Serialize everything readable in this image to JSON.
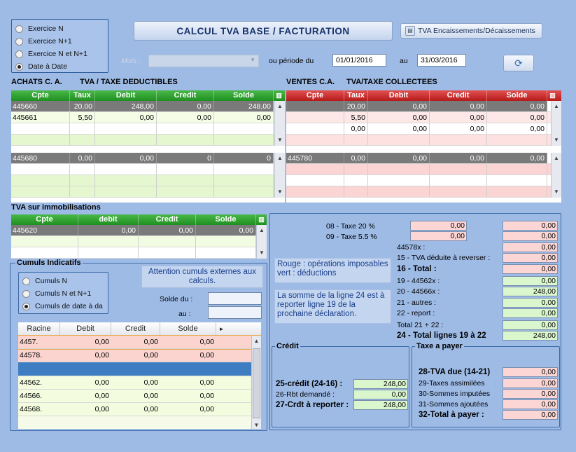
{
  "period_options": [
    "Exercice N",
    "Exercice N+1",
    "Exercice N et N+1",
    "Date à Date"
  ],
  "title": "CALCUL TVA BASE / FACTURATION",
  "tva_btn": "TVA Encaissements/Décaissements",
  "mois_label": "Mois :",
  "periode_label": "ou période du",
  "date_from": "01/01/2016",
  "au_label": "au",
  "date_to": "31/03/2016",
  "achats_title": "ACHATS C. A.",
  "achats_sub": "TVA / TAXE DEDUCTIBLES",
  "ventes_title": "VENTES C.A.",
  "ventes_sub": "TVA/TAXE COLLECTEES",
  "achats_cols": [
    "Cpte",
    "Taux",
    "Debit",
    "Credit",
    "Solde"
  ],
  "achats_rows": [
    [
      "445660",
      "20,00",
      "248,00",
      "0,00",
      "248,00"
    ],
    [
      "445661",
      "5,50",
      "0,00",
      "0,00",
      "0,00"
    ],
    [
      "",
      "",
      "",
      "",
      ""
    ],
    [
      "",
      "",
      "",
      "",
      ""
    ]
  ],
  "achats_rows2": [
    [
      "445680",
      "0,00",
      "0,00",
      "0",
      "0"
    ],
    [
      "",
      "",
      "",
      "",
      ""
    ],
    [
      "",
      "",
      "",
      "",
      ""
    ],
    [
      "",
      "",
      "",
      "",
      ""
    ]
  ],
  "ventes_cols": [
    "Cpte",
    "Taux",
    "Debit",
    "Credit",
    "Solde"
  ],
  "ventes_rows": [
    [
      "",
      "20,00",
      "0,00",
      "0,00",
      "0,00"
    ],
    [
      "",
      "5,50",
      "0,00",
      "0,00",
      "0,00"
    ],
    [
      "",
      "0,00",
      "0,00",
      "0,00",
      "0,00"
    ],
    [
      "",
      "",
      "",
      "",
      ""
    ]
  ],
  "ventes_rows2": [
    [
      "445780",
      "0,00",
      "0,00",
      "0,00",
      "0,00"
    ],
    [
      "",
      "",
      "",
      "",
      ""
    ],
    [
      "",
      "",
      "",
      "",
      ""
    ],
    [
      "",
      "",
      "",
      "",
      ""
    ]
  ],
  "immo_title": "TVA sur immobilisations",
  "immo_cols": [
    "Cpte",
    "debit",
    "Credit",
    "Solde"
  ],
  "immo_rows": [
    [
      "445620",
      "0,00",
      "0,00",
      "0,00"
    ],
    [
      "",
      "",
      "",
      ""
    ],
    [
      "",
      "",
      "",
      ""
    ]
  ],
  "cumuls_title": "Cumuls Indicatifs",
  "cumuls_options": [
    "Cumuls N",
    "Cumuls N et N+1",
    "Cumuls de date à da"
  ],
  "attention": "Attention cumuls externes aux calculs.",
  "solde_du": "Solde du :",
  "solde_au": "au :",
  "cumuls_cols": [
    "Racine",
    "Debit",
    "Credit",
    "Solde"
  ],
  "cumuls_rows": [
    [
      "4457.",
      "0,00",
      "0,00",
      "0,00"
    ],
    [
      "44578.",
      "0,00",
      "0,00",
      "0,00"
    ],
    [
      "",
      "",
      "",
      ""
    ],
    [
      "44562.",
      "0,00",
      "0,00",
      "0,00"
    ],
    [
      "44566.",
      "0,00",
      "0,00",
      "0,00"
    ],
    [
      "44568.",
      "0,00",
      "0,00",
      "0,00"
    ]
  ],
  "taxe20": "08  -  Taxe 20 %",
  "taxe55": "09  -  Taxe 5.5 %",
  "taxe20_v1": "0,00",
  "taxe55_v1": "0,00",
  "right_lines": [
    {
      "label": "",
      "value": "0,00"
    },
    {
      "label": "",
      "value": "0,00"
    },
    {
      "label": "44578x :",
      "value": "0,00"
    },
    {
      "label": "15  - TVA déduite à reverser :",
      "value": "0,00"
    },
    {
      "label": "16  - Total :",
      "value": "0,00"
    },
    {
      "label": "19  - 44562x :",
      "value": "0,00"
    },
    {
      "label": "20  - 44566x :",
      "value": "248,00"
    },
    {
      "label": "21  - autres :",
      "value": "0,00"
    },
    {
      "label": "22  - report :",
      "value": "0,00"
    },
    {
      "label": "Total   21 + 22 :",
      "value": "0,00"
    },
    {
      "label": "24  -  Total lignes 19 à 22",
      "value": "248,00"
    }
  ],
  "legend_text": "Rouge : opérations imposables vert : déductions",
  "somme_text": "La somme de la ligne 24 est à reporter ligne 19 de la prochaine déclaration.",
  "credit_title": "Crédit",
  "credit_lines": [
    [
      "25-crédit (24-16) :",
      "248,00"
    ],
    [
      "26-Rbt demandé :",
      "0,00"
    ],
    [
      "27-Crdt à reporter :",
      "248,00"
    ]
  ],
  "taxe_title": "Taxe a payer",
  "taxe_lines": [
    [
      "28-TVA due (14-21)",
      "0,00"
    ],
    [
      "29-Taxes assimilées",
      "0,00"
    ],
    [
      "30-Sommes imputées",
      "0,00"
    ],
    [
      "31-Sommes ajoutées",
      "0,00"
    ],
    [
      "32-Total à payer :",
      "0,00"
    ]
  ]
}
